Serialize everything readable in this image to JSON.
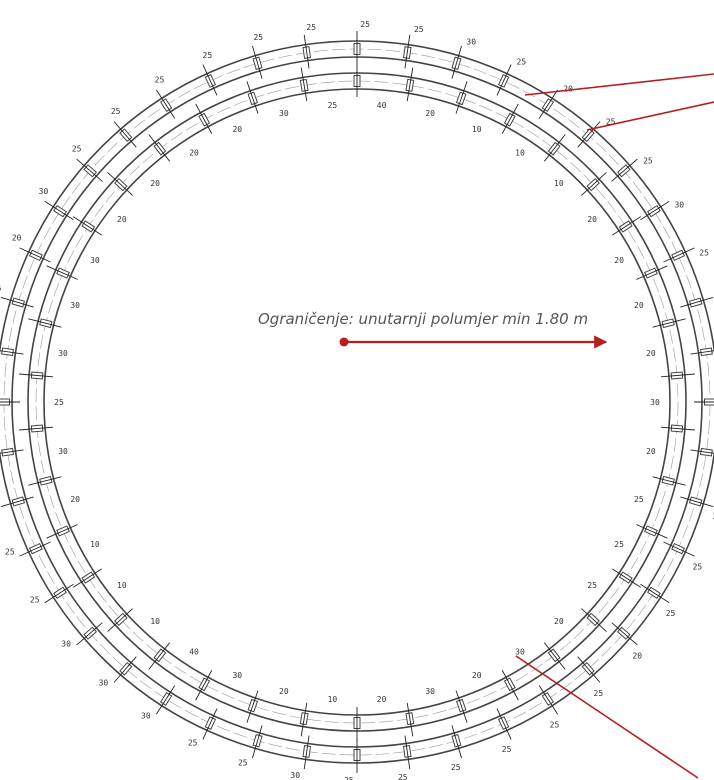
{
  "caption": "Ograničenje: unutarnji polumjer min 1.80 m",
  "colors": {
    "accent": "#b81e1e",
    "track": "#444444",
    "labels": "#333333"
  },
  "outer_ring_labels": [
    "25",
    "25",
    "30",
    "25",
    "20",
    "25",
    "25",
    "30",
    "25",
    "20",
    "30",
    "25",
    "25",
    "30",
    "25",
    "25",
    "20",
    "25",
    "25",
    "25",
    "25",
    "25",
    "25",
    "30",
    "25",
    "25",
    "30",
    "30",
    "30",
    "25",
    "25",
    "25",
    "20",
    "25",
    "25",
    "25",
    "20",
    "30",
    "25",
    "25",
    "25",
    "25",
    "25",
    "25"
  ],
  "inner_ring_labels": [
    "40",
    "20",
    "10",
    "10",
    "10",
    "20",
    "20",
    "20",
    "20",
    "30",
    "20",
    "25",
    "25",
    "25",
    "20",
    "30",
    "20",
    "30",
    "20",
    "10",
    "20",
    "30",
    "40",
    "10",
    "10",
    "10",
    "20",
    "30",
    "25",
    "30",
    "30",
    "30",
    "20",
    "20",
    "20",
    "20",
    "30",
    "25"
  ]
}
